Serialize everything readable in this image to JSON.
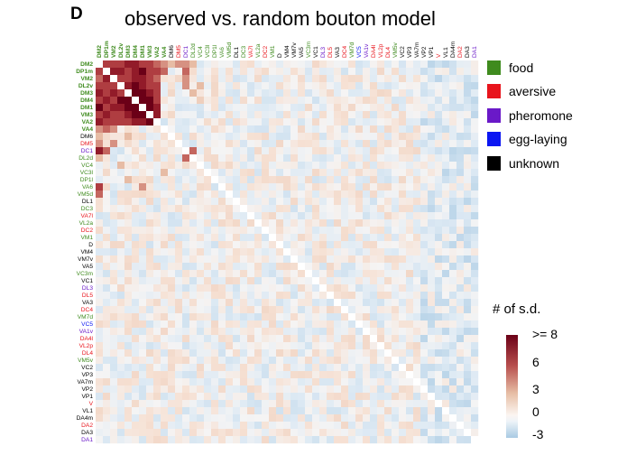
{
  "panel_label": "D",
  "chart_data": {
    "type": "heatmap",
    "title": "observed vs. random bouton model",
    "labels": [
      "DM2",
      "DP1m",
      "VM2",
      "DL2v",
      "DM3",
      "DM4",
      "DM1",
      "VM3",
      "VA2",
      "VA4",
      "DM6",
      "DM5",
      "DC1",
      "DL2d",
      "VC4",
      "VC3l",
      "DP1l",
      "VA6",
      "VM5d",
      "DL1",
      "DC3",
      "VA7l",
      "VL2a",
      "DC2",
      "VM1",
      "D",
      "VM4",
      "VM7v",
      "VA5",
      "VC3m",
      "VC1",
      "DL3",
      "DL5",
      "VA3",
      "DC4",
      "VM7d",
      "VC5",
      "VA1v",
      "DA4l",
      "VL2p",
      "DL4",
      "VM5v",
      "VC2",
      "VP3",
      "VA7m",
      "VP2",
      "VP1",
      "V",
      "VL1",
      "DA4m",
      "DA2",
      "DA3",
      "DA1"
    ],
    "label_categories": [
      "food",
      "food",
      "food",
      "food",
      "food",
      "food",
      "food",
      "food",
      "food",
      "food",
      "unknown",
      "aversive",
      "pheromone",
      "food",
      "food",
      "food",
      "food",
      "food",
      "food",
      "unknown",
      "food",
      "aversive",
      "food",
      "aversive",
      "food",
      "unknown",
      "unknown",
      "unknown",
      "unknown",
      "food",
      "unknown",
      "pheromone",
      "aversive",
      "unknown",
      "aversive",
      "food",
      "egg-laying",
      "pheromone",
      "aversive",
      "aversive",
      "aversive",
      "food",
      "unknown",
      "unknown",
      "unknown",
      "unknown",
      "unknown",
      "aversive",
      "unknown",
      "unknown",
      "aversive",
      "unknown",
      "pheromone"
    ],
    "bold_labels": [
      "DM2",
      "DP1m",
      "VM2",
      "DL2v",
      "DM3",
      "DM4",
      "DM1",
      "VM3",
      "VA2",
      "VA4"
    ],
    "highlight_values": [
      [
        0,
        1,
        6
      ],
      [
        0,
        2,
        6
      ],
      [
        0,
        3,
        6
      ],
      [
        0,
        4,
        7
      ],
      [
        0,
        5,
        7
      ],
      [
        0,
        6,
        6
      ],
      [
        0,
        7,
        6
      ],
      [
        0,
        8,
        5
      ],
      [
        0,
        9,
        4
      ],
      [
        1,
        0,
        6
      ],
      [
        1,
        2,
        7
      ],
      [
        1,
        3,
        7
      ],
      [
        1,
        4,
        6
      ],
      [
        1,
        5,
        7
      ],
      [
        1,
        6,
        8
      ],
      [
        1,
        7,
        6
      ],
      [
        1,
        8,
        6
      ],
      [
        1,
        9,
        5
      ],
      [
        2,
        0,
        5
      ],
      [
        2,
        1,
        7
      ],
      [
        2,
        3,
        6
      ],
      [
        2,
        4,
        6
      ],
      [
        2,
        5,
        7
      ],
      [
        2,
        6,
        7
      ],
      [
        2,
        7,
        6
      ],
      [
        2,
        8,
        5
      ],
      [
        3,
        0,
        6
      ],
      [
        3,
        1,
        6
      ],
      [
        3,
        2,
        6
      ],
      [
        3,
        4,
        7
      ],
      [
        3,
        5,
        8
      ],
      [
        3,
        6,
        7
      ],
      [
        3,
        7,
        6
      ],
      [
        3,
        8,
        6
      ],
      [
        4,
        0,
        7
      ],
      [
        4,
        1,
        6
      ],
      [
        4,
        2,
        7
      ],
      [
        4,
        3,
        6
      ],
      [
        4,
        5,
        8
      ],
      [
        4,
        6,
        8
      ],
      [
        4,
        7,
        7
      ],
      [
        4,
        8,
        6
      ],
      [
        5,
        0,
        6
      ],
      [
        5,
        1,
        7
      ],
      [
        5,
        2,
        6
      ],
      [
        5,
        3,
        8
      ],
      [
        5,
        4,
        8
      ],
      [
        5,
        6,
        8
      ],
      [
        5,
        7,
        8
      ],
      [
        5,
        8,
        6
      ],
      [
        6,
        0,
        8
      ],
      [
        6,
        1,
        6
      ],
      [
        6,
        2,
        7
      ],
      [
        6,
        3,
        7
      ],
      [
        6,
        4,
        8
      ],
      [
        6,
        5,
        8
      ],
      [
        6,
        7,
        8
      ],
      [
        6,
        8,
        7
      ],
      [
        7,
        0,
        6
      ],
      [
        7,
        1,
        7
      ],
      [
        7,
        2,
        6
      ],
      [
        7,
        3,
        6
      ],
      [
        7,
        4,
        7
      ],
      [
        7,
        5,
        8
      ],
      [
        7,
        6,
        8
      ],
      [
        7,
        8,
        7
      ],
      [
        8,
        0,
        7
      ],
      [
        8,
        1,
        6
      ],
      [
        8,
        2,
        6
      ],
      [
        8,
        3,
        6
      ],
      [
        8,
        4,
        6
      ],
      [
        8,
        5,
        7
      ],
      [
        8,
        6,
        7
      ],
      [
        8,
        7,
        8
      ],
      [
        9,
        0,
        4
      ],
      [
        9,
        1,
        5
      ],
      [
        9,
        2,
        4
      ],
      [
        10,
        0,
        3
      ],
      [
        11,
        0,
        4
      ],
      [
        12,
        0,
        7
      ],
      [
        12,
        1,
        5
      ],
      [
        13,
        0,
        3
      ],
      [
        17,
        0,
        6
      ],
      [
        18,
        0,
        5
      ],
      [
        0,
        10,
        3
      ],
      [
        0,
        11,
        4
      ],
      [
        0,
        12,
        4
      ],
      [
        0,
        13,
        3
      ],
      [
        1,
        12,
        5
      ],
      [
        2,
        12,
        4
      ],
      [
        3,
        12,
        4
      ],
      [
        3,
        14,
        3
      ],
      [
        4,
        13,
        3
      ],
      [
        5,
        14,
        2
      ],
      [
        10,
        4,
        3
      ],
      [
        11,
        2,
        4
      ],
      [
        12,
        13,
        5
      ],
      [
        13,
        12,
        5
      ],
      [
        14,
        3,
        3
      ],
      [
        16,
        4,
        3
      ],
      [
        17,
        6,
        4
      ],
      [
        15,
        9,
        3
      ]
    ],
    "base_value": 0,
    "value_range": [
      -3,
      8
    ],
    "colorbar": {
      "label": "# of s.d.",
      "ticks": [
        ">= 8",
        "6",
        "3",
        "0",
        "-3"
      ]
    },
    "legend": [
      {
        "name": "food",
        "color": "#3f8b1e"
      },
      {
        "name": "aversive",
        "color": "#e8141c"
      },
      {
        "name": "pheromone",
        "color": "#6a19c8"
      },
      {
        "name": "egg-laying",
        "color": "#0b16f2"
      },
      {
        "name": "unknown",
        "color": "#000000"
      }
    ]
  }
}
